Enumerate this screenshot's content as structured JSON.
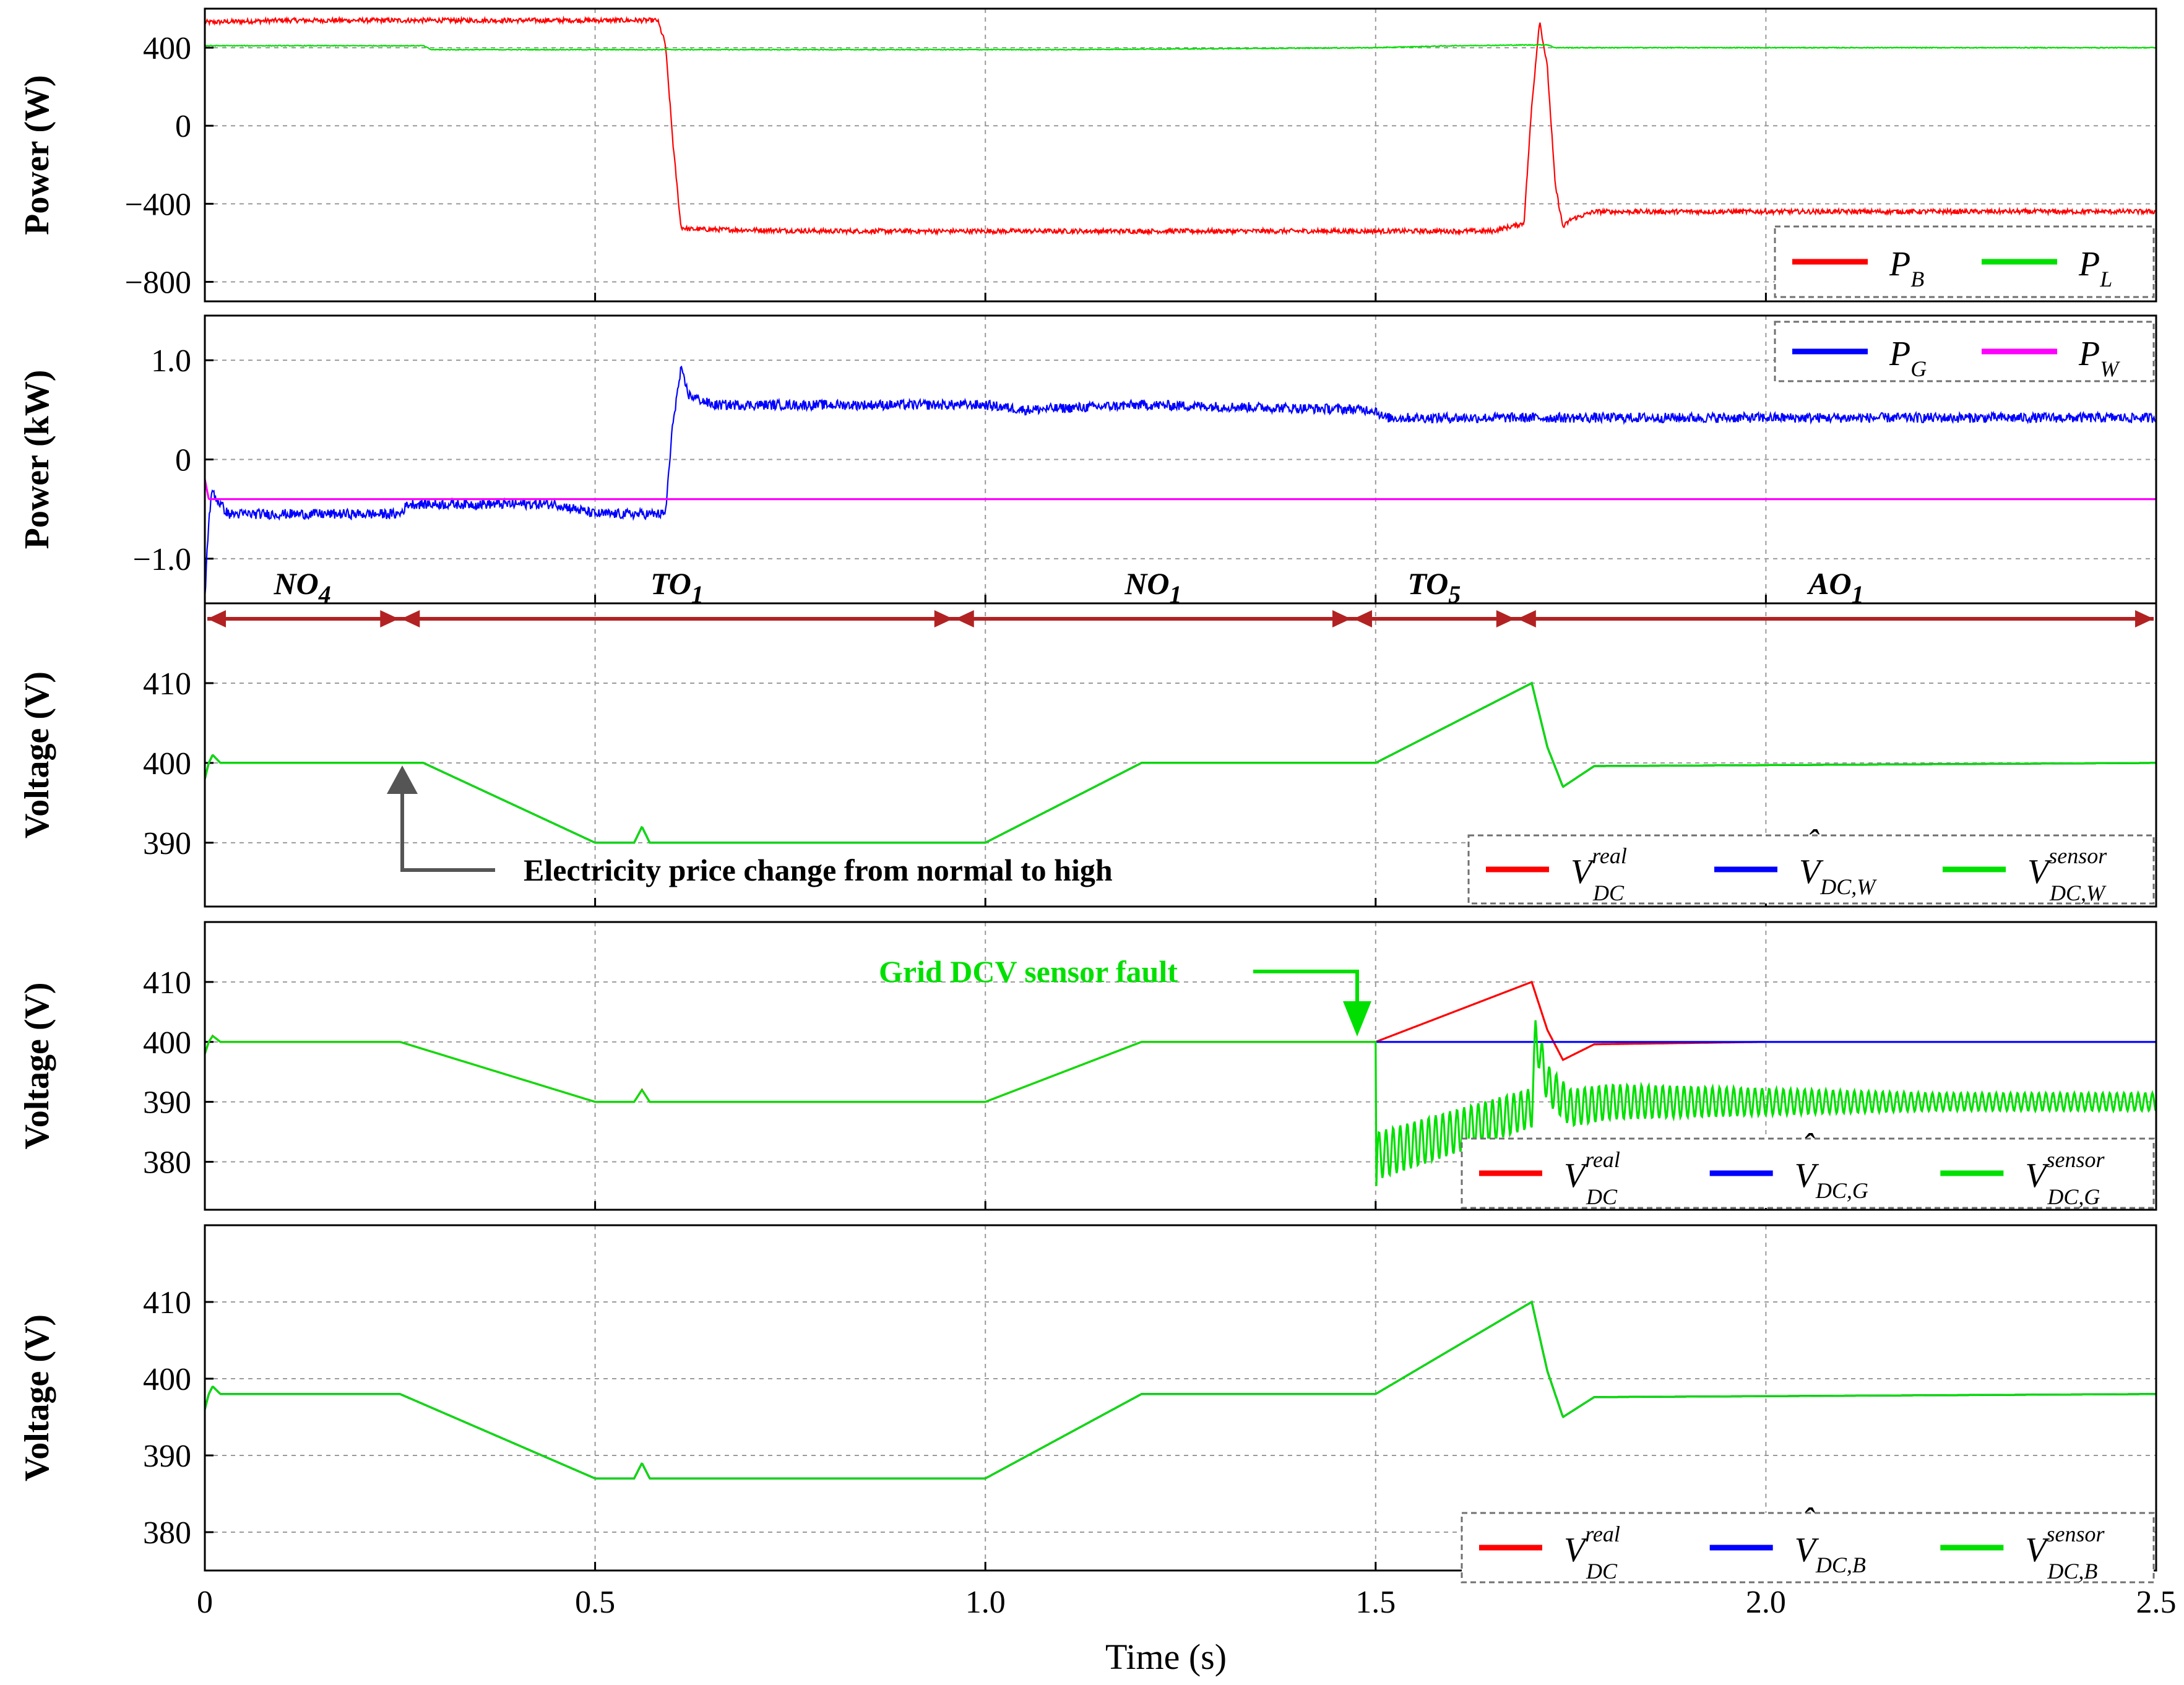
{
  "chart_data": [
    {
      "type": "line",
      "ylabel": "Power (W)",
      "ylim": [
        -900,
        600
      ],
      "yticks": [
        "400",
        "0",
        "−400",
        "−800"
      ],
      "ytick_values": [
        400,
        0,
        -400,
        -800
      ],
      "xlim": [
        0,
        2.5
      ],
      "grid": true,
      "legend_position": "bottom-right",
      "series": [
        {
          "name": "P_B",
          "legend_main": "P",
          "legend_sub": "B",
          "color": "#ff0000",
          "x": [
            0,
            0.1,
            0.3,
            0.58,
            0.59,
            0.6,
            0.61,
            0.62,
            0.8,
            1.0,
            1.2,
            1.5,
            1.65,
            1.69,
            1.7,
            1.71,
            1.72,
            1.73,
            1.74,
            1.75,
            1.78,
            2.0,
            2.5
          ],
          "y": [
            530,
            540,
            540,
            540,
            420,
            -100,
            -520,
            -530,
            -540,
            -540,
            -540,
            -540,
            -540,
            -500,
            100,
            540,
            300,
            -300,
            -520,
            -480,
            -440,
            -440,
            -440
          ],
          "noise": 12
        },
        {
          "name": "P_L",
          "legend_main": "P",
          "legend_sub": "L",
          "color": "#00e000",
          "x": [
            0,
            0.28,
            0.29,
            1.1,
            1.5,
            1.6,
            1.72,
            1.73,
            2.5
          ],
          "y": [
            410,
            410,
            390,
            390,
            400,
            410,
            415,
            400,
            400
          ],
          "noise": 2
        }
      ]
    },
    {
      "type": "line",
      "ylabel": "Power (kW)",
      "ylim": [
        -1.45,
        1.45
      ],
      "yticks": [
        "1.0",
        "0",
        "−1.0"
      ],
      "ytick_values": [
        1.0,
        0,
        -1.0
      ],
      "xlim": [
        0,
        2.5
      ],
      "grid": true,
      "legend_position": "top-right",
      "series": [
        {
          "name": "P_G",
          "legend_main": "P",
          "legend_sub": "G",
          "color": "#0000ff",
          "x": [
            0,
            0.005,
            0.01,
            0.015,
            0.03,
            0.1,
            0.25,
            0.26,
            0.45,
            0.5,
            0.55,
            0.59,
            0.6,
            0.61,
            0.62,
            0.65,
            0.8,
            1.0,
            1.05,
            1.2,
            1.5,
            1.51,
            2.5
          ],
          "y": [
            -1.4,
            -0.6,
            -0.3,
            -0.4,
            -0.55,
            -0.55,
            -0.55,
            -0.45,
            -0.45,
            -0.55,
            -0.55,
            -0.55,
            0.4,
            0.9,
            0.65,
            0.55,
            0.55,
            0.55,
            0.5,
            0.55,
            0.5,
            0.42,
            0.42
          ],
          "noise": 0.05
        },
        {
          "name": "P_W",
          "legend_main": "P",
          "legend_sub": "W",
          "color": "#ff00ff",
          "x": [
            0,
            0.005,
            0.01,
            2.5
          ],
          "y": [
            -0.2,
            -0.4,
            -0.4,
            -0.4
          ],
          "noise": 0
        }
      ]
    },
    {
      "type": "line",
      "ylabel": "Voltage (V)",
      "ylim": [
        382,
        420
      ],
      "yticks": [
        "410",
        "400",
        "390"
      ],
      "ytick_values": [
        410,
        400,
        390
      ],
      "xlim": [
        0,
        2.5
      ],
      "grid": true,
      "legend_position": "bottom-right",
      "series": [
        {
          "name": "V_DC^real",
          "legend_main": "V",
          "legend_sub": "DC",
          "legend_sup": "real",
          "legend_hat": false,
          "color": "#ff0000",
          "x": [
            0,
            0.005,
            0.01,
            0.02,
            0.03,
            0.28,
            0.5,
            0.55,
            0.56,
            0.57,
            0.58,
            0.6,
            1.0,
            1.2,
            1.5,
            1.7,
            1.72,
            1.74,
            1.78,
            2.5
          ],
          "y": [
            398,
            400,
            401,
            400,
            400,
            400,
            390,
            390,
            392,
            390,
            390,
            390,
            390,
            400,
            400,
            410,
            402,
            397,
            399.6,
            400
          ],
          "noise": 0
        },
        {
          "name": "V_DC,W estimate",
          "legend_main": "V",
          "legend_sub": "DC,W",
          "legend_sup": "",
          "legend_hat": true,
          "color": "#0000ff",
          "x": [
            0,
            0.005,
            0.01,
            0.02,
            0.03,
            0.28,
            0.5,
            0.55,
            0.56,
            0.57,
            0.58,
            0.6,
            1.0,
            1.2,
            1.5,
            1.7,
            1.72,
            1.74,
            1.78,
            2.5
          ],
          "y": [
            398,
            400,
            401,
            400,
            400,
            400,
            390,
            390,
            392,
            390,
            390,
            390,
            390,
            400,
            400,
            410,
            402,
            397,
            399.6,
            400
          ],
          "noise": 0
        },
        {
          "name": "V_DC,W^sensor",
          "legend_main": "V",
          "legend_sub": "DC,W",
          "legend_sup": "sensor",
          "legend_hat": false,
          "color": "#00e000",
          "x": [
            0,
            0.005,
            0.01,
            0.02,
            0.03,
            0.28,
            0.5,
            0.55,
            0.56,
            0.57,
            0.58,
            0.6,
            1.0,
            1.2,
            1.5,
            1.7,
            1.72,
            1.74,
            1.78,
            2.5
          ],
          "y": [
            398,
            400,
            401,
            400,
            400,
            400,
            390,
            390,
            392,
            390,
            390,
            390,
            390,
            400,
            400,
            410,
            402,
            397,
            399.6,
            400
          ],
          "noise": 0
        }
      ]
    },
    {
      "type": "line",
      "ylabel": "Voltage (V)",
      "ylim": [
        372,
        420
      ],
      "yticks": [
        "410",
        "400",
        "390",
        "380"
      ],
      "ytick_values": [
        410,
        400,
        390,
        380
      ],
      "xlim": [
        0,
        2.5
      ],
      "grid": true,
      "legend_position": "bottom-right",
      "series": [
        {
          "name": "V_DC^real",
          "legend_main": "V",
          "legend_sub": "DC",
          "legend_sup": "real",
          "legend_hat": false,
          "color": "#ff0000",
          "x": [
            0,
            0.005,
            0.01,
            0.02,
            0.03,
            0.25,
            0.5,
            0.55,
            0.56,
            0.57,
            0.58,
            0.6,
            1.0,
            1.2,
            1.5,
            1.7,
            1.72,
            1.74,
            1.78,
            2.0
          ],
          "y": [
            398,
            400,
            401,
            400,
            400,
            400,
            390,
            390,
            392,
            390,
            390,
            390,
            390,
            400,
            400,
            410,
            402,
            397,
            399.6,
            400
          ],
          "noise": 0
        },
        {
          "name": "V_DC,G estimate",
          "legend_main": "V",
          "legend_sub": "DC,G",
          "legend_sup": "",
          "legend_hat": true,
          "color": "#0000ff",
          "x": [
            1.5,
            2.5
          ],
          "y": [
            400,
            400
          ],
          "noise": 0
        },
        {
          "name": "V_DC,G^sensor",
          "legend_main": "V",
          "legend_sub": "DC,G",
          "legend_sup": "sensor",
          "legend_hat": false,
          "color": "#00e000",
          "x": [
            0,
            0.005,
            0.01,
            0.02,
            0.03,
            0.25,
            0.5,
            0.55,
            0.56,
            0.57,
            0.58,
            0.6,
            1.0,
            1.2,
            1.5,
            1.501,
            1.502,
            1.7,
            1.705,
            1.72,
            1.75,
            1.8,
            2.5
          ],
          "y": [
            398,
            400,
            401,
            400,
            400,
            400,
            390,
            390,
            392,
            390,
            390,
            390,
            390,
            400,
            400,
            375,
            381,
            389,
            401,
            393,
            389,
            390,
            390
          ],
          "noise": 0,
          "osc": {
            "from": 1.502,
            "to": 2.5,
            "freq_hz": 110,
            "amp_start": 4,
            "amp_end": 1.5
          }
        }
      ]
    },
    {
      "type": "line",
      "ylabel": "Voltage (V)",
      "ylim": [
        375,
        420
      ],
      "yticks": [
        "410",
        "400",
        "390",
        "380"
      ],
      "ytick_values": [
        410,
        400,
        390,
        380
      ],
      "xlim": [
        0,
        2.5
      ],
      "xlabel": "Time (s)",
      "xticks": [
        "0",
        "0.5",
        "1.0",
        "1.5",
        "2.0",
        "2.5"
      ],
      "xtick_values": [
        0,
        0.5,
        1.0,
        1.5,
        2.0,
        2.5
      ],
      "grid": true,
      "legend_position": "bottom-right",
      "series": [
        {
          "name": "V_DC^real",
          "legend_main": "V",
          "legend_sub": "DC",
          "legend_sup": "real",
          "legend_hat": false,
          "color": "#ff0000",
          "x": [
            0,
            0.005,
            0.01,
            0.02,
            0.03,
            0.25,
            0.5,
            0.55,
            0.56,
            0.57,
            0.58,
            0.6,
            1.0,
            1.2,
            1.5,
            1.7,
            1.72,
            1.74,
            1.78,
            2.5
          ],
          "y": [
            396,
            398,
            399,
            398,
            398,
            398,
            387,
            387,
            389,
            387,
            387,
            387,
            387,
            398,
            398,
            410,
            401,
            395,
            397.6,
            398
          ],
          "noise": 0
        },
        {
          "name": "V_DC,B estimate",
          "legend_main": "V",
          "legend_sub": "DC,B",
          "legend_sup": "",
          "legend_hat": true,
          "color": "#0000ff",
          "x": [
            0,
            0.005,
            0.01,
            0.02,
            0.03,
            0.25,
            0.5,
            0.55,
            0.56,
            0.57,
            0.58,
            0.6,
            1.0,
            1.2,
            1.5,
            1.7,
            1.72,
            1.74,
            1.78,
            2.5
          ],
          "y": [
            396,
            398,
            399,
            398,
            398,
            398,
            387,
            387,
            389,
            387,
            387,
            387,
            387,
            398,
            398,
            410,
            401,
            395,
            397.6,
            398
          ],
          "noise": 0
        },
        {
          "name": "V_DC,B^sensor",
          "legend_main": "V",
          "legend_sub": "DC,B",
          "legend_sup": "sensor",
          "legend_hat": false,
          "color": "#00e000",
          "x": [
            0,
            0.005,
            0.01,
            0.02,
            0.03,
            0.25,
            0.5,
            0.55,
            0.56,
            0.57,
            0.58,
            0.6,
            1.0,
            1.2,
            1.5,
            1.7,
            1.72,
            1.74,
            1.78,
            2.5
          ],
          "y": [
            396,
            398,
            399,
            398,
            398,
            398,
            387,
            387,
            389,
            387,
            387,
            387,
            387,
            398,
            398,
            410,
            401,
            395,
            397.6,
            398
          ],
          "noise": 0
        }
      ]
    }
  ],
  "mode_segments": [
    {
      "main": "NO",
      "sub": "4",
      "from": 0,
      "to": 0.25
    },
    {
      "main": "TO",
      "sub": "1",
      "from": 0.25,
      "to": 0.96
    },
    {
      "main": "NO",
      "sub": "1",
      "from": 0.96,
      "to": 1.47
    },
    {
      "main": "TO",
      "sub": "5",
      "from": 1.47,
      "to": 1.68
    },
    {
      "main": "AO",
      "sub": "1",
      "from": 1.68,
      "to": 2.5
    }
  ],
  "annotations": {
    "price_change": "Electricity price change from normal to high",
    "sensor_fault": "Grid DCV sensor fault"
  },
  "colors": {
    "red": "#ff0000",
    "green": "#00e000",
    "blue": "#0000ff",
    "magenta": "#ff00ff",
    "mode_arrow": "#b22222",
    "annotation_arrow": "#555555",
    "fault_text": "#00e000"
  }
}
